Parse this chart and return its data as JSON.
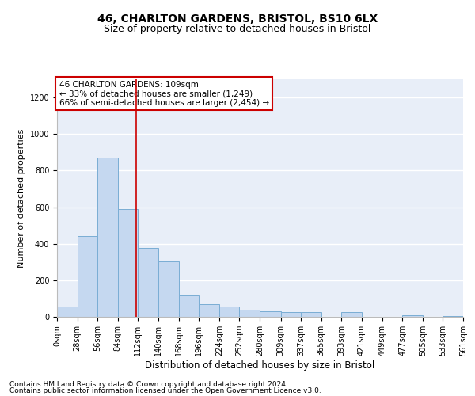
{
  "title1": "46, CHARLTON GARDENS, BRISTOL, BS10 6LX",
  "title2": "Size of property relative to detached houses in Bristol",
  "xlabel": "Distribution of detached houses by size in Bristol",
  "ylabel": "Number of detached properties",
  "annotation_line1": "46 CHARLTON GARDENS: 109sqm",
  "annotation_line2": "← 33% of detached houses are smaller (1,249)",
  "annotation_line3": "66% of semi-detached houses are larger (2,454) →",
  "footer1": "Contains HM Land Registry data © Crown copyright and database right 2024.",
  "footer2": "Contains public sector information licensed under the Open Government Licence v3.0.",
  "bar_color": "#c5d8f0",
  "bar_edge_color": "#7aadd4",
  "redline_x": 109,
  "bin_edges": [
    0,
    28,
    56,
    84,
    112,
    140,
    168,
    196,
    224,
    252,
    280,
    309,
    337,
    365,
    393,
    421,
    449,
    477,
    505,
    533,
    561
  ],
  "bar_heights": [
    55,
    440,
    870,
    590,
    375,
    305,
    115,
    70,
    55,
    40,
    30,
    25,
    25,
    0,
    25,
    0,
    0,
    10,
    0,
    5
  ],
  "ylim": [
    0,
    1300
  ],
  "yticks": [
    0,
    200,
    400,
    600,
    800,
    1000,
    1200
  ],
  "background_color": "#e8eef8",
  "grid_color": "#ffffff",
  "annotation_box_color": "#ffffff",
  "annotation_box_edge": "#cc0000",
  "redline_color": "#cc0000",
  "title1_fontsize": 10,
  "title2_fontsize": 9,
  "xlabel_fontsize": 8.5,
  "ylabel_fontsize": 8,
  "tick_fontsize": 7,
  "annotation_fontsize": 7.5,
  "footer_fontsize": 6.5
}
